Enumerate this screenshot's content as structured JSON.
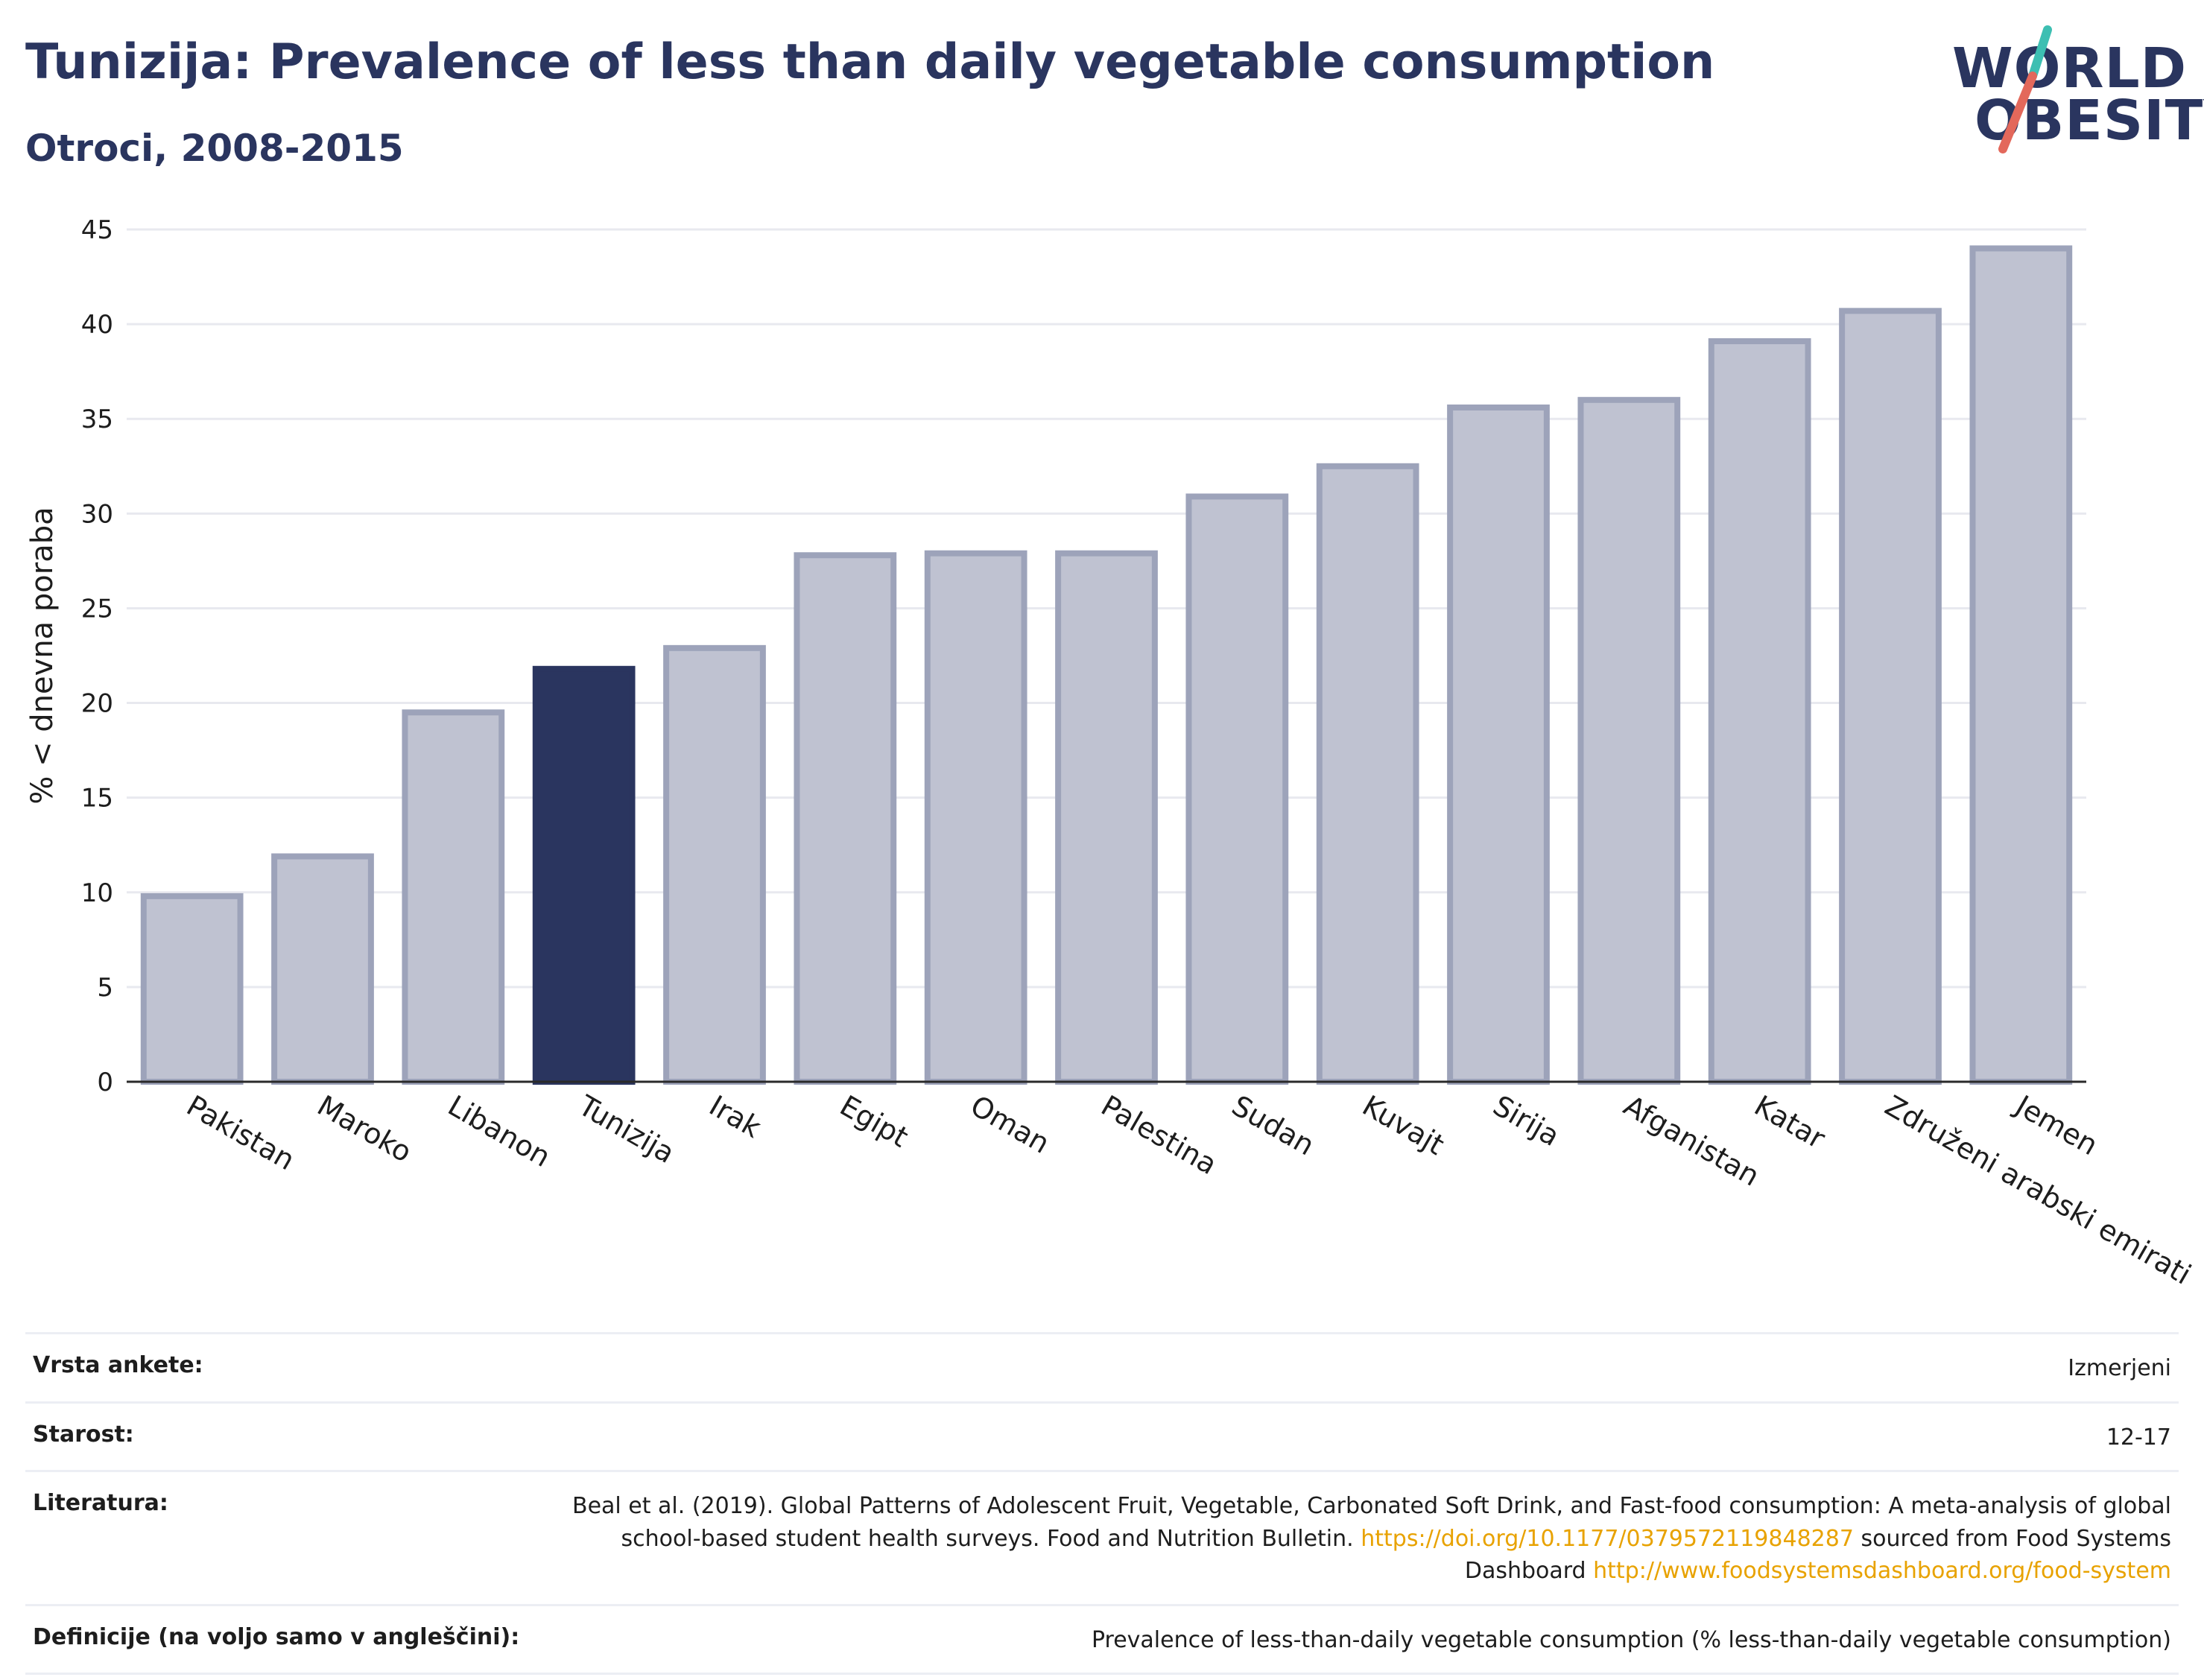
{
  "header": {
    "title": "Tunizija: Prevalence of less than daily vegetable consumption",
    "subtitle": "Otroci, 2008-2015"
  },
  "logo": {
    "line1": "WORLD",
    "line2": "OBESITY",
    "accent_teal": "#3dbfb2",
    "accent_red": "#e3685b"
  },
  "chart_data": {
    "type": "bar",
    "title": "Tunizija: Prevalence of less than daily vegetable consumption",
    "subtitle": "Otroci, 2008-2015",
    "categories": [
      "Pakistan",
      "Maroko",
      "Libanon",
      "Tunizija",
      "Irak",
      "Egipt",
      "Oman",
      "Palestina",
      "Sudan",
      "Kuvajt",
      "Sirija",
      "Afganistan",
      "Katar",
      "Združeni arabski emirati",
      "Jemen"
    ],
    "values": [
      9.8,
      11.9,
      19.5,
      21.8,
      22.9,
      27.8,
      27.9,
      27.9,
      30.9,
      32.5,
      35.6,
      36.0,
      39.1,
      40.7,
      44.0
    ],
    "highlight": "Tunizija",
    "ylabel": "% < dnevna poraba",
    "xlabel": "",
    "ylim": [
      0,
      45
    ],
    "yticks": [
      0,
      5,
      10,
      15,
      20,
      25,
      30,
      35,
      40,
      45
    ],
    "grid": true,
    "colors": {
      "bar": "#bfc2d1",
      "bar_edge": "#9da3ba",
      "highlight": "#2a355f",
      "grid": "#e8e9ef",
      "axis": "#2a2a2a"
    }
  },
  "meta": [
    {
      "key": "Vrsta ankete:",
      "value": "Izmerjeni"
    },
    {
      "key": "Starost:",
      "value": "12-17"
    },
    {
      "key": "Literatura:",
      "value_text1": "Beal et al. (2019). Global Patterns of Adolescent Fruit, Vegetable, Carbonated Soft Drink, and Fast-food consumption: A meta-analysis of global school-based student health surveys. Food and Nutrition Bulletin.",
      "link1": "https://doi.org/10.1177/0379572119848287",
      "value_text2": "sourced from Food Systems Dashboard",
      "link2": "http://www.foodsystemsdashboard.org/food-system"
    },
    {
      "key": "Definicije (na voljo samo v angleščini):",
      "value": "Prevalence of less-than-daily vegetable consumption (% less-than-daily vegetable consumption)"
    }
  ]
}
